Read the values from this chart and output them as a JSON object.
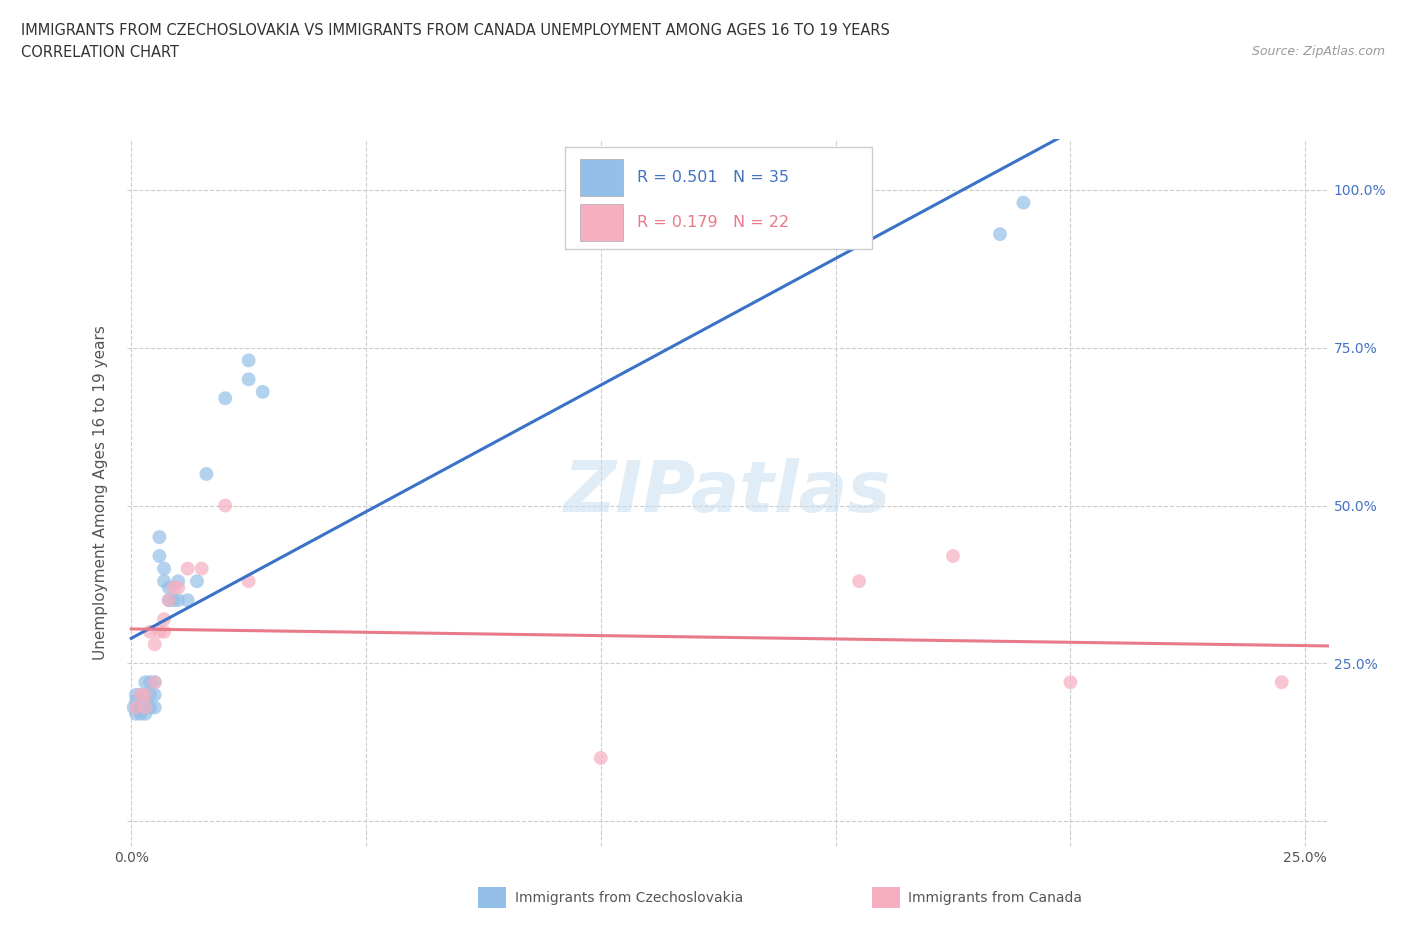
{
  "title_line1": "IMMIGRANTS FROM CZECHOSLOVAKIA VS IMMIGRANTS FROM CANADA UNEMPLOYMENT AMONG AGES 16 TO 19 YEARS",
  "title_line2": "CORRELATION CHART",
  "source_text": "Source: ZipAtlas.com",
  "ylabel": "Unemployment Among Ages 16 to 19 years",
  "xlim": [
    -0.001,
    0.255
  ],
  "ylim": [
    -0.04,
    1.08
  ],
  "x_ticks": [
    0.0,
    0.05,
    0.1,
    0.15,
    0.2,
    0.25
  ],
  "y_ticks": [
    0.0,
    0.25,
    0.5,
    0.75,
    1.0
  ],
  "czecho_color": "#93bfe8",
  "canada_color": "#f5afc0",
  "czecho_line_color": "#3a72c8",
  "canada_line_color": "#e87a8a",
  "background_color": "#ffffff",
  "grid_color": "#cccccc",
  "czecho_x": [
    0.0005,
    0.001,
    0.001,
    0.001,
    0.002,
    0.002,
    0.002,
    0.003,
    0.003,
    0.003,
    0.003,
    0.004,
    0.004,
    0.004,
    0.005,
    0.005,
    0.005,
    0.006,
    0.006,
    0.007,
    0.007,
    0.008,
    0.008,
    0.009,
    0.01,
    0.01,
    0.012,
    0.014,
    0.016,
    0.02,
    0.025,
    0.025,
    0.028,
    0.185,
    0.19
  ],
  "czecho_y": [
    0.18,
    0.17,
    0.19,
    0.2,
    0.17,
    0.18,
    0.2,
    0.17,
    0.18,
    0.2,
    0.22,
    0.18,
    0.2,
    0.22,
    0.18,
    0.2,
    0.22,
    0.42,
    0.45,
    0.38,
    0.4,
    0.35,
    0.37,
    0.35,
    0.35,
    0.38,
    0.35,
    0.38,
    0.55,
    0.67,
    0.7,
    0.73,
    0.68,
    0.93,
    0.98
  ],
  "canada_x": [
    0.001,
    0.002,
    0.003,
    0.003,
    0.004,
    0.005,
    0.005,
    0.006,
    0.007,
    0.007,
    0.008,
    0.009,
    0.01,
    0.012,
    0.015,
    0.02,
    0.025,
    0.1,
    0.155,
    0.175,
    0.2,
    0.245
  ],
  "canada_y": [
    0.18,
    0.2,
    0.18,
    0.2,
    0.3,
    0.22,
    0.28,
    0.3,
    0.3,
    0.32,
    0.35,
    0.37,
    0.37,
    0.4,
    0.4,
    0.5,
    0.38,
    0.1,
    0.38,
    0.42,
    0.22,
    0.22
  ],
  "legend_czecho_label": "Immigrants from Czechoslovakia",
  "legend_canada_label": "Immigrants from Canada"
}
